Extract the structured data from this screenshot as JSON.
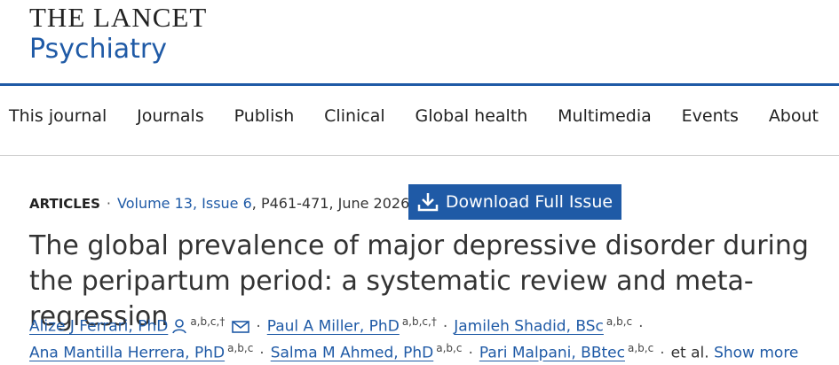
{
  "header": {
    "brand": "THE LANCET",
    "journal": "Psychiatry"
  },
  "nav": [
    "This journal",
    "Journals",
    "Publish",
    "Clinical",
    "Global health",
    "Multimedia",
    "Events",
    "About"
  ],
  "meta": {
    "section": "ARTICLES",
    "separator": "·",
    "issue": "Volume 13, Issue 6",
    "pages_date": ", P461-471, June 2026",
    "download_button": "Download Full Issue"
  },
  "article": {
    "title": "The global prevalence of major depressive disorder during the peripartum period: a systematic review and meta-regression",
    "authors": [
      {
        "name": "Alize J Ferrari, PhD",
        "affiliations": "a,b,c,†"
      },
      {
        "name": "Paul A Miller, PhD",
        "affiliations": "a,b,c,†"
      },
      {
        "name": "Jamileh Shadid, BSc",
        "affiliations": "a,b,c"
      },
      {
        "name": "Ana Mantilla Herrera, PhD",
        "affiliations": "a,b,c"
      },
      {
        "name": "Salma M Ahmed, PhD",
        "affiliations": "a,b,c"
      },
      {
        "name": "Pari Malpani, BBtec",
        "affiliations": "a,b,c"
      }
    ],
    "author_separator": "·",
    "et_al": "et al.",
    "show_more": "Show more"
  }
}
